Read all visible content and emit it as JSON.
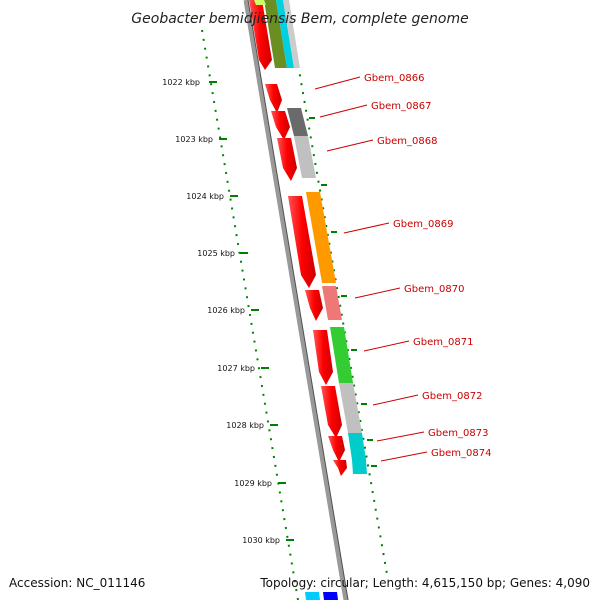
{
  "title": "Geobacter bemidjiensis Bem, complete genome",
  "footer": {
    "accession": "Accession: NC_011146",
    "topology": "Topology: circular; Length: 4,615,150 bp; Genes: 4,090"
  },
  "scale_labels": [
    "1022 kbp",
    "1023 kbp",
    "1024 kbp",
    "1025 kbp",
    "1026 kbp",
    "1027 kbp",
    "1028 kbp",
    "1029 kbp",
    "1030 kbp"
  ],
  "gene_labels": [
    "Gbem_0866",
    "Gbem_0867",
    "Gbem_0868",
    "Gbem_0869",
    "Gbem_0870",
    "Gbem_0871",
    "Gbem_0872",
    "Gbem_0873",
    "Gbem_0874"
  ],
  "colors": {
    "cds": "#ff0000",
    "backbone": "#888888",
    "scale_ticks": "#008000",
    "label_text": "#cc0000",
    "category_orange": "#ff8c00",
    "category_green": "#33cc33",
    "category_grey": "#bbbbbb",
    "category_darkgrey": "#666666",
    "category_cyan": "#00cccc",
    "category_pink": "#ee7777",
    "category_olive": "#6b8e23",
    "category_blue": "#0000ff"
  }
}
